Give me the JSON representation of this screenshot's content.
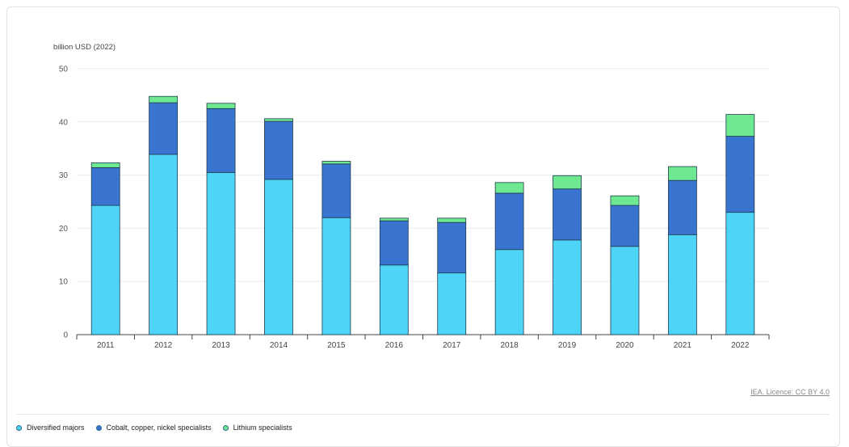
{
  "chart_data": {
    "type": "bar",
    "stacked": true,
    "ylabel": "billion USD (2022)",
    "ylim": [
      0,
      50
    ],
    "yticks": [
      0,
      10,
      20,
      30,
      40,
      50
    ],
    "grid": true,
    "legend_position": "bottom-left",
    "categories": [
      "2011",
      "2012",
      "2013",
      "2014",
      "2015",
      "2016",
      "2017",
      "2018",
      "2019",
      "2020",
      "2021",
      "2022"
    ],
    "series": [
      {
        "name": "Diversified majors",
        "color": "#4dd4f7",
        "values": [
          24.3,
          33.9,
          30.5,
          29.2,
          22.0,
          13.1,
          11.6,
          16.0,
          17.8,
          16.6,
          18.8,
          23.0
        ]
      },
      {
        "name": "Cobalt, copper, nickel specialists",
        "color": "#3a74d1",
        "values": [
          7.1,
          9.7,
          12.0,
          10.9,
          10.1,
          8.3,
          9.5,
          10.6,
          9.6,
          7.7,
          10.2,
          14.3
        ]
      },
      {
        "name": "Lithium specialists",
        "color": "#6ee891",
        "values": [
          0.9,
          1.2,
          1.0,
          0.5,
          0.5,
          0.5,
          0.8,
          2.0,
          2.5,
          1.8,
          2.6,
          4.1
        ]
      }
    ]
  },
  "licence": {
    "label": "IEA. Licence: CC BY 4.0"
  }
}
